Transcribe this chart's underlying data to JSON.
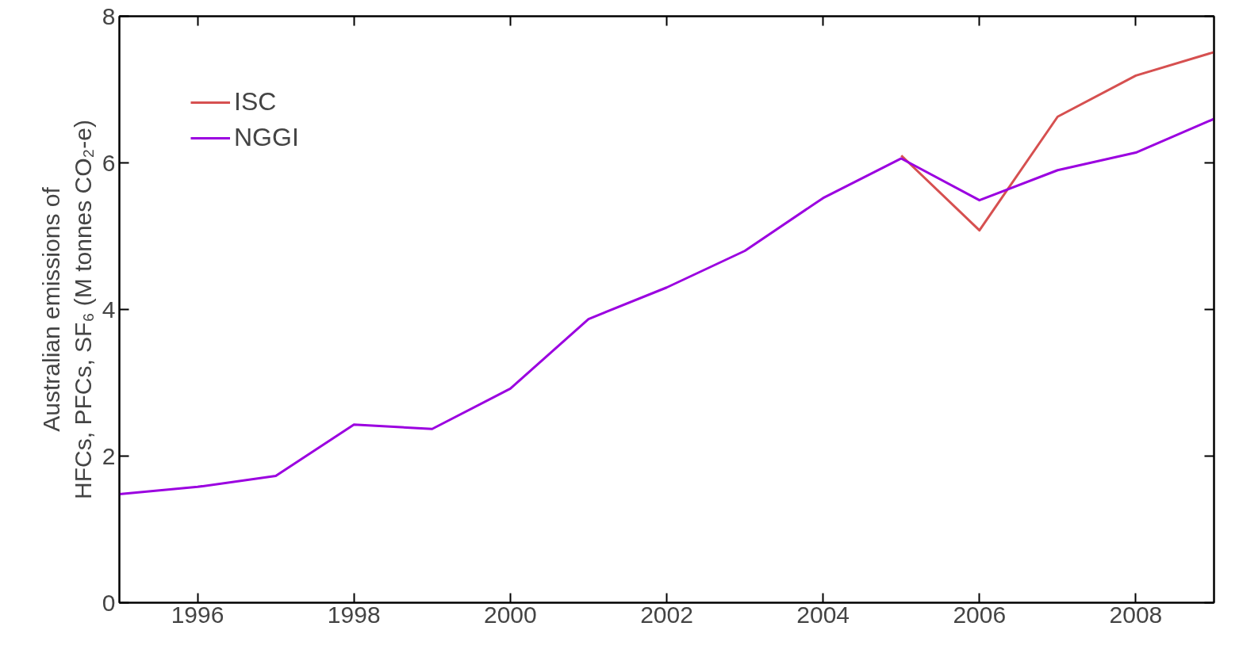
{
  "chart_data": {
    "type": "line",
    "ylabel": "Australian emissions of\nHFCs, PFCs, SF₆ (M tonnes CO₂-e)",
    "series": [
      {
        "name": "ISC",
        "color": "#d65050",
        "x": [
          2005,
          2006,
          2007,
          2008,
          2009
        ],
        "values": [
          6.1,
          5.08,
          6.63,
          7.19,
          7.51
        ]
      },
      {
        "name": "NGGI",
        "color": "#9b00e0",
        "x": [
          1995,
          1996,
          1997,
          1998,
          1999,
          2000,
          2001,
          2002,
          2003,
          2004,
          2005,
          2006,
          2007,
          2008,
          2009
        ],
        "values": [
          1.48,
          1.58,
          1.73,
          2.43,
          2.37,
          2.92,
          3.87,
          4.3,
          4.8,
          5.52,
          6.06,
          5.49,
          5.9,
          6.14,
          6.6
        ]
      }
    ],
    "xlim": [
      1995,
      2009
    ],
    "xticks": [
      1996,
      1998,
      2000,
      2002,
      2004,
      2006,
      2008
    ],
    "ylim": [
      0,
      8
    ],
    "yticks": [
      0,
      2,
      4,
      6,
      8
    ],
    "grid": false,
    "legend": "top left",
    "marker": "none",
    "line_style": "solid"
  }
}
